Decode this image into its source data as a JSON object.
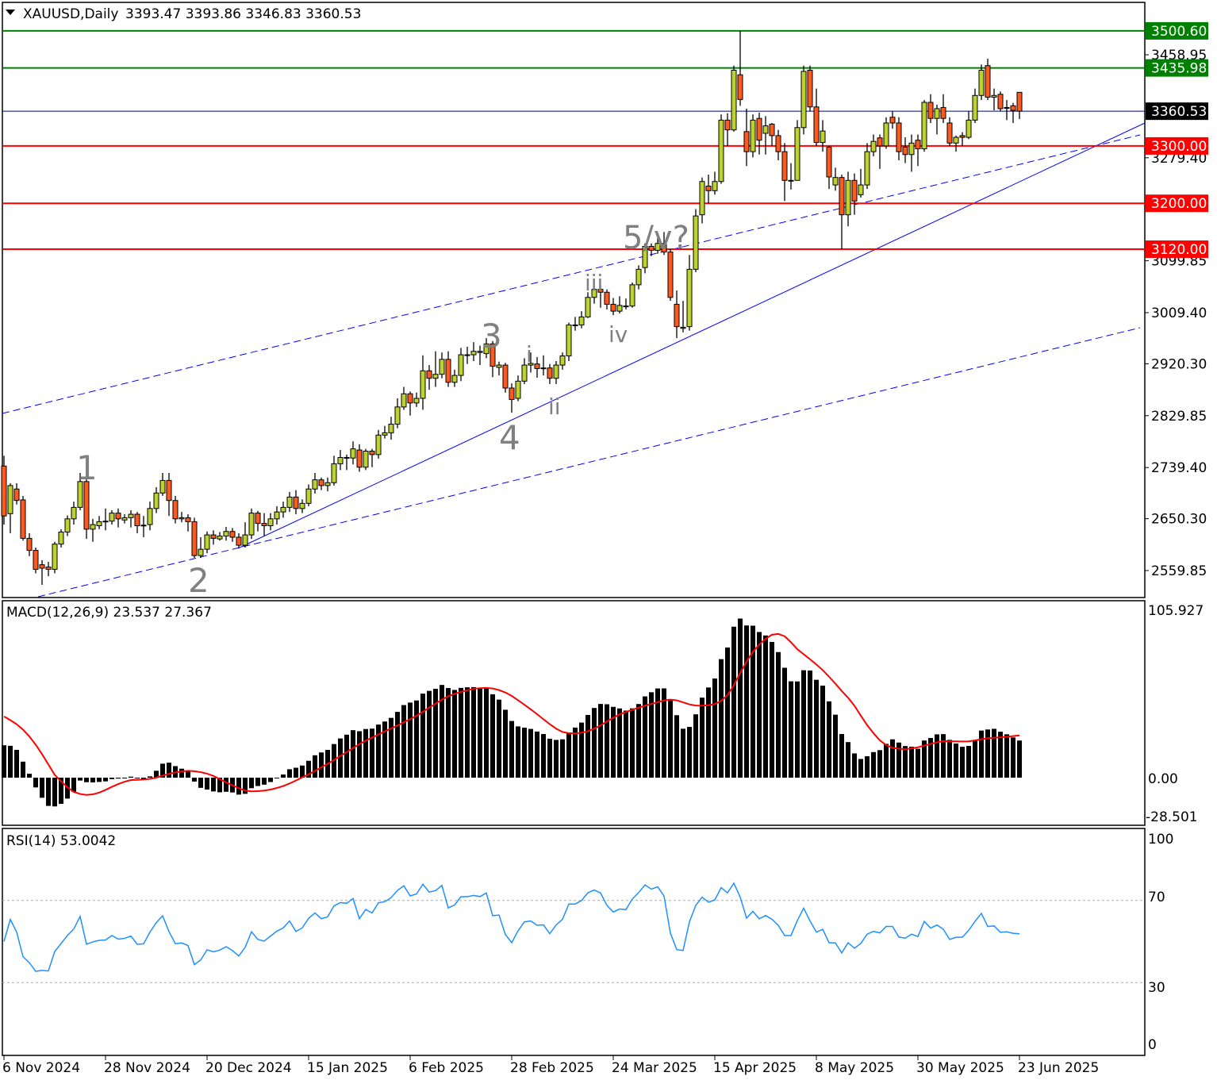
{
  "header": {
    "symbol_timeframe": "XAUUSD,Daily",
    "ohlc": "3393.47 3393.86 3346.83 3360.53",
    "menu_icon": "triangle-down-icon"
  },
  "macd_panel": {
    "label": "MACD(12,26,9) 23.537 27.367",
    "axis": [
      "105.927",
      "0.00",
      "-28.501"
    ]
  },
  "rsi_panel": {
    "label": "RSI(14) 53.0042",
    "axis": [
      "100",
      "70",
      "30",
      "0"
    ]
  },
  "colors": {
    "bull": "#bed22d",
    "bear": "#ff5a1e",
    "support": "#ff0000",
    "resistance": "#008000",
    "trendline": "#0000ff",
    "signal": "#ff0000",
    "rsi": "#1e90ff"
  },
  "chart_data": {
    "type": "candlestick",
    "title": "XAUUSD,Daily",
    "ylim": [
      2520,
      3540
    ],
    "price_ticks": [
      "3458.95",
      "3279.40",
      "3099.85",
      "3009.40",
      "2920.30",
      "2829.85",
      "2739.40",
      "2650.30",
      "2559.85"
    ],
    "date_labels": [
      "6 Nov 2024",
      "28 Nov 2024",
      "20 Dec 2024",
      "15 Jan 2025",
      "6 Feb 2025",
      "28 Feb 2025",
      "24 Mar 2025",
      "15 Apr 2025",
      "8 May 2025",
      "30 May 2025",
      "23 Jun 2025"
    ],
    "levels": [
      {
        "value": "3500.60",
        "kind": "resistance"
      },
      {
        "value": "3435.98",
        "kind": "resistance"
      },
      {
        "value": "3360.53",
        "kind": "current"
      },
      {
        "value": "3300.00",
        "kind": "support"
      },
      {
        "value": "3200.00",
        "kind": "support"
      },
      {
        "value": "3120.00",
        "kind": "support"
      }
    ],
    "wave_labels": [
      "1",
      "2",
      "3",
      "4",
      "5/v?",
      "i",
      "ii",
      "iii",
      "iv"
    ],
    "rsi_levels": [
      70,
      30
    ],
    "candles_ohlc": [
      [
        2742,
        2760,
        2640,
        2655
      ],
      [
        2659,
        2712,
        2625,
        2708
      ],
      [
        2702,
        2712,
        2675,
        2682
      ],
      [
        2683,
        2690,
        2612,
        2616
      ],
      [
        2616,
        2625,
        2585,
        2595
      ],
      [
        2595,
        2600,
        2555,
        2562
      ],
      [
        2570,
        2578,
        2535,
        2564
      ],
      [
        2566,
        2575,
        2550,
        2562
      ],
      [
        2562,
        2610,
        2555,
        2606
      ],
      [
        2606,
        2632,
        2600,
        2627
      ],
      [
        2627,
        2656,
        2620,
        2650
      ],
      [
        2650,
        2680,
        2640,
        2670
      ],
      [
        2670,
        2730,
        2665,
        2715
      ],
      [
        2715,
        2722,
        2615,
        2632
      ],
      [
        2632,
        2650,
        2610,
        2640
      ],
      [
        2638,
        2655,
        2632,
        2645
      ],
      [
        2645,
        2668,
        2630,
        2646
      ],
      [
        2646,
        2665,
        2640,
        2660
      ],
      [
        2660,
        2668,
        2635,
        2650
      ],
      [
        2648,
        2658,
        2642,
        2652
      ],
      [
        2652,
        2665,
        2635,
        2658
      ],
      [
        2658,
        2662,
        2625,
        2638
      ],
      [
        2638,
        2655,
        2618,
        2639
      ],
      [
        2640,
        2680,
        2630,
        2668
      ],
      [
        2668,
        2705,
        2660,
        2695
      ],
      [
        2695,
        2730,
        2690,
        2717
      ],
      [
        2717,
        2730,
        2655,
        2682
      ],
      [
        2682,
        2690,
        2642,
        2650
      ],
      [
        2650,
        2662,
        2644,
        2652
      ],
      [
        2652,
        2658,
        2628,
        2645
      ],
      [
        2645,
        2652,
        2582,
        2586
      ],
      [
        2586,
        2618,
        2582,
        2597
      ],
      [
        2597,
        2628,
        2590,
        2622
      ],
      [
        2622,
        2630,
        2605,
        2616
      ],
      [
        2615,
        2627,
        2612,
        2620
      ],
      [
        2620,
        2636,
        2612,
        2628
      ],
      [
        2628,
        2634,
        2610,
        2618
      ],
      [
        2618,
        2625,
        2600,
        2604
      ],
      [
        2604,
        2644,
        2600,
        2622
      ],
      [
        2622,
        2668,
        2615,
        2660
      ],
      [
        2660,
        2664,
        2628,
        2642
      ],
      [
        2642,
        2660,
        2620,
        2638
      ],
      [
        2638,
        2660,
        2630,
        2650
      ],
      [
        2650,
        2672,
        2640,
        2662
      ],
      [
        2662,
        2680,
        2652,
        2670
      ],
      [
        2670,
        2697,
        2662,
        2688
      ],
      [
        2688,
        2700,
        2658,
        2668
      ],
      [
        2668,
        2684,
        2660,
        2677
      ],
      [
        2677,
        2710,
        2672,
        2702
      ],
      [
        2702,
        2730,
        2694,
        2718
      ],
      [
        2718,
        2722,
        2700,
        2708
      ],
      [
        2708,
        2722,
        2698,
        2713
      ],
      [
        2713,
        2760,
        2708,
        2746
      ],
      [
        2746,
        2770,
        2735,
        2757
      ],
      [
        2757,
        2762,
        2735,
        2756
      ],
      [
        2756,
        2785,
        2745,
        2772
      ],
      [
        2770,
        2780,
        2732,
        2740
      ],
      [
        2740,
        2772,
        2735,
        2768
      ],
      [
        2768,
        2772,
        2740,
        2762
      ],
      [
        2762,
        2805,
        2755,
        2796
      ],
      [
        2796,
        2812,
        2790,
        2800
      ],
      [
        2800,
        2828,
        2788,
        2815
      ],
      [
        2815,
        2860,
        2808,
        2845
      ],
      [
        2845,
        2880,
        2840,
        2868
      ],
      [
        2868,
        2872,
        2830,
        2852
      ],
      [
        2852,
        2870,
        2845,
        2860
      ],
      [
        2860,
        2935,
        2840,
        2908
      ],
      [
        2908,
        2918,
        2875,
        2895
      ],
      [
        2895,
        2942,
        2880,
        2902
      ],
      [
        2902,
        2940,
        2895,
        2928
      ],
      [
        2928,
        2942,
        2880,
        2888
      ],
      [
        2888,
        2910,
        2880,
        2900
      ],
      [
        2900,
        2948,
        2890,
        2936
      ],
      [
        2936,
        2950,
        2920,
        2936
      ],
      [
        2936,
        2958,
        2925,
        2942
      ],
      [
        2942,
        2952,
        2918,
        2940
      ],
      [
        2938,
        2965,
        2930,
        2955
      ],
      [
        2955,
        2960,
        2897,
        2916
      ],
      [
        2914,
        2924,
        2900,
        2918
      ],
      [
        2918,
        2922,
        2870,
        2878
      ],
      [
        2878,
        2886,
        2835,
        2858
      ],
      [
        2860,
        2900,
        2855,
        2890
      ],
      [
        2890,
        2930,
        2885,
        2918
      ],
      [
        2918,
        2940,
        2905,
        2921
      ],
      [
        2920,
        2932,
        2896,
        2912
      ],
      [
        2913,
        2935,
        2900,
        2913
      ],
      [
        2913,
        2920,
        2885,
        2895
      ],
      [
        2895,
        2925,
        2885,
        2918
      ],
      [
        2918,
        2940,
        2910,
        2934
      ],
      [
        2934,
        2992,
        2925,
        2988
      ],
      [
        2988,
        3002,
        2978,
        2988
      ],
      [
        2988,
        3012,
        2982,
        3002
      ],
      [
        3002,
        3045,
        3000,
        3036
      ],
      [
        3036,
        3060,
        3025,
        3050
      ],
      [
        3050,
        3056,
        3018,
        3045
      ],
      [
        3045,
        3050,
        3015,
        3024
      ],
      [
        3024,
        3035,
        3005,
        3012
      ],
      [
        3012,
        3038,
        3008,
        3022
      ],
      [
        3021,
        3034,
        3015,
        3021
      ],
      [
        3021,
        3062,
        3018,
        3058
      ],
      [
        3058,
        3092,
        3050,
        3085
      ],
      [
        3088,
        3130,
        3078,
        3125
      ],
      [
        3125,
        3130,
        3108,
        3118
      ],
      [
        3118,
        3140,
        3112,
        3130
      ],
      [
        3130,
        3150,
        3110,
        3115
      ],
      [
        3115,
        3120,
        3030,
        3036
      ],
      [
        3024,
        3048,
        2965,
        2985
      ],
      [
        2984,
        3030,
        2975,
        2982
      ],
      [
        2985,
        3110,
        2978,
        3085
      ],
      [
        3085,
        3190,
        3080,
        3178
      ],
      [
        3180,
        3245,
        3165,
        3238
      ],
      [
        3230,
        3250,
        3200,
        3222
      ],
      [
        3222,
        3255,
        3215,
        3238
      ],
      [
        3238,
        3355,
        3234,
        3345
      ],
      [
        3345,
        3357,
        3300,
        3328
      ],
      [
        3328,
        3440,
        3325,
        3432
      ],
      [
        3424,
        3500,
        3370,
        3381
      ],
      [
        3325,
        3365,
        3265,
        3290
      ],
      [
        3290,
        3355,
        3280,
        3345
      ],
      [
        3348,
        3358,
        3285,
        3310
      ],
      [
        3322,
        3352,
        3285,
        3335
      ],
      [
        3338,
        3340,
        3300,
        3318
      ],
      [
        3318,
        3328,
        3275,
        3290
      ],
      [
        3290,
        3305,
        3204,
        3240
      ],
      [
        3240,
        3270,
        3224,
        3240
      ],
      [
        3240,
        3345,
        3240,
        3332
      ],
      [
        3332,
        3440,
        3320,
        3430
      ],
      [
        3432,
        3440,
        3360,
        3368
      ],
      [
        3368,
        3400,
        3300,
        3306
      ],
      [
        3306,
        3345,
        3290,
        3326
      ],
      [
        3298,
        3300,
        3225,
        3246
      ],
      [
        3232,
        3262,
        3222,
        3245
      ],
      [
        3245,
        3250,
        3120,
        3180
      ],
      [
        3180,
        3255,
        3160,
        3240
      ],
      [
        3240,
        3252,
        3180,
        3204
      ],
      [
        3215,
        3260,
        3210,
        3232
      ],
      [
        3232,
        3305,
        3225,
        3290
      ],
      [
        3290,
        3320,
        3282,
        3308
      ],
      [
        3314,
        3320,
        3260,
        3300
      ],
      [
        3300,
        3350,
        3295,
        3340
      ],
      [
        3350,
        3360,
        3330,
        3340
      ],
      [
        3340,
        3350,
        3275,
        3290
      ],
      [
        3298,
        3315,
        3270,
        3285
      ],
      [
        3285,
        3320,
        3255,
        3305
      ],
      [
        3310,
        3320,
        3265,
        3295
      ],
      [
        3295,
        3380,
        3290,
        3376
      ],
      [
        3376,
        3390,
        3340,
        3348
      ],
      [
        3348,
        3372,
        3320,
        3365
      ],
      [
        3367,
        3390,
        3340,
        3348
      ],
      [
        3340,
        3350,
        3300,
        3305
      ],
      [
        3305,
        3318,
        3290,
        3315
      ],
      [
        3318,
        3324,
        3300,
        3315
      ],
      [
        3315,
        3360,
        3312,
        3345
      ],
      [
        3345,
        3400,
        3340,
        3388
      ],
      [
        3388,
        3442,
        3380,
        3432
      ],
      [
        3440,
        3452,
        3380,
        3385
      ],
      [
        3385,
        3400,
        3362,
        3388
      ],
      [
        3390,
        3395,
        3360,
        3365
      ],
      [
        3367,
        3380,
        3345,
        3367
      ],
      [
        3370,
        3375,
        3340,
        3362
      ],
      [
        3393.47,
        3393.86,
        3346.83,
        3360.53
      ]
    ]
  }
}
